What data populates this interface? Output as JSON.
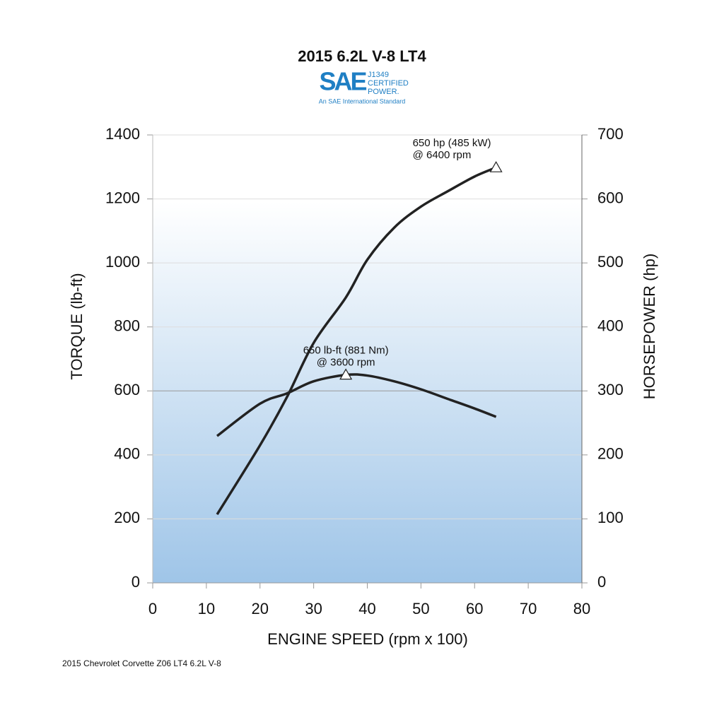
{
  "chart_data": {
    "type": "line",
    "title": "2015 6.2L V-8 LT4",
    "logo": {
      "mark": "SAE",
      "lines": [
        "J1349",
        "CERTIFIED",
        "POWER."
      ],
      "tagline": "An SAE International Standard"
    },
    "xlabel": "ENGINE SPEED (rpm x 100)",
    "ylabel": "TORQUE (lb-ft)",
    "y2label": "HORSEPOWER (hp)",
    "x": [
      12,
      20,
      25,
      30,
      36,
      40,
      45,
      50,
      55,
      60,
      64
    ],
    "series": [
      {
        "name": "Torque",
        "color": "#222222",
        "values": [
          459,
          560,
          592,
          630,
          650,
          648,
          630,
          605,
          575,
          545,
          519
        ]
      },
      {
        "name": "Horsepower",
        "color": "#222222",
        "axis": "y2",
        "values": [
          107,
          215,
          290,
          375,
          446,
          505,
          555,
          588,
          612,
          635,
          649
        ]
      }
    ],
    "annotations": [
      [
        "650 lb-ft (881 Nm)",
        "@ 3600 rpm"
      ],
      [
        "650 hp (485 kW)",
        "@ 6400 rpm"
      ]
    ],
    "xlim": [
      0,
      80
    ],
    "xticks": [
      0,
      10,
      20,
      30,
      40,
      50,
      60,
      70,
      80
    ],
    "ylim": [
      0,
      1400
    ],
    "yticks": [
      0,
      200,
      400,
      600,
      800,
      1000,
      1200,
      1400
    ],
    "y2lim": [
      0,
      700
    ],
    "y2ticks": [
      0,
      100,
      200,
      300,
      400,
      500,
      600,
      700
    ],
    "grid": true,
    "footnote": "2015 Chevrolet Corvette Z06 LT4 6.2L V-8"
  }
}
